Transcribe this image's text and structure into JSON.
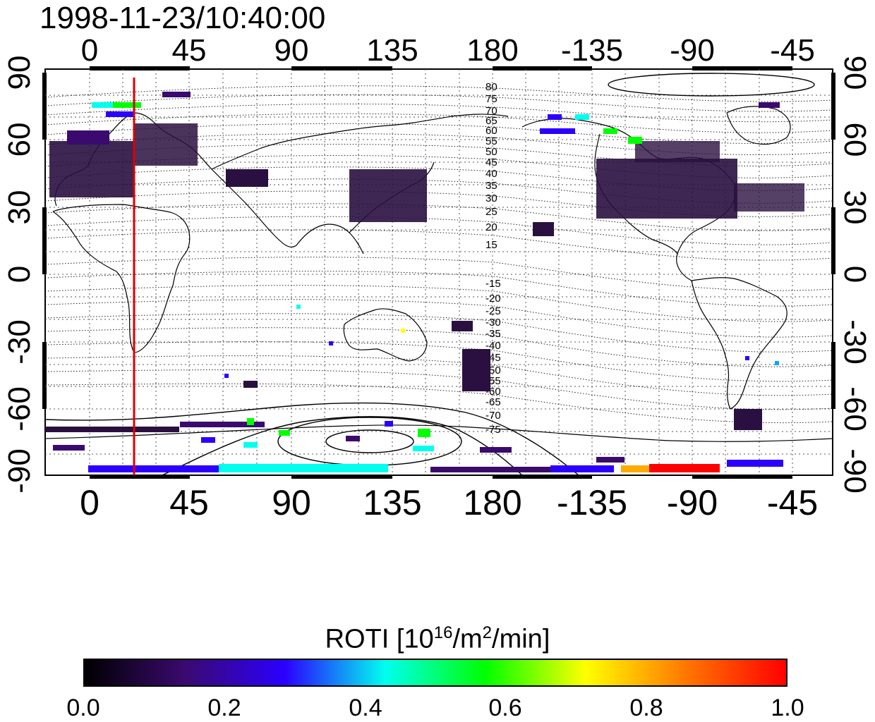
{
  "title": "1998-11-23/10:40:00",
  "axes": {
    "x_top_ticks": [
      "0",
      "45",
      "90",
      "135",
      "180",
      "-135",
      "-90",
      "-45"
    ],
    "x_bottom_ticks": [
      "0",
      "45",
      "90",
      "135",
      "180",
      "-135",
      "-90",
      "-45"
    ],
    "y_left_ticks": [
      "90",
      "60",
      "30",
      "0",
      "-30",
      "-60",
      "-90"
    ],
    "y_right_ticks": [
      "90",
      "60",
      "30",
      "0",
      "-30",
      "-60",
      "-90"
    ],
    "lon_range": [
      -20,
      330
    ],
    "lat_range": [
      -90,
      90
    ]
  },
  "map": {
    "marker_longitude": 20,
    "marker_color": "#e00000",
    "contour_labels_north": [
      "80",
      "75",
      "70",
      "65",
      "60",
      "55",
      "50",
      "45",
      "40",
      "35",
      "30",
      "25",
      "20",
      "15"
    ],
    "contour_labels_south": [
      "-15",
      "-20",
      "-25",
      "-30",
      "-35",
      "-40",
      "-45",
      "-50",
      "-55",
      "-60",
      "-65",
      "-70",
      "-75"
    ]
  },
  "colorbar": {
    "label_main": "ROTI  [10",
    "label_exp1": "16",
    "label_mid": "/m",
    "label_exp2": "2",
    "label_end": "/min]",
    "ticks": [
      "0.0",
      "0.2",
      "0.4",
      "0.6",
      "0.8",
      "1.0"
    ],
    "range": [
      0,
      1
    ],
    "colors": [
      "#000000",
      "#3a0a6e",
      "#2b00ff",
      "#00ffee",
      "#00ff00",
      "#ffff00",
      "#ff7700",
      "#ff0000"
    ]
  }
}
